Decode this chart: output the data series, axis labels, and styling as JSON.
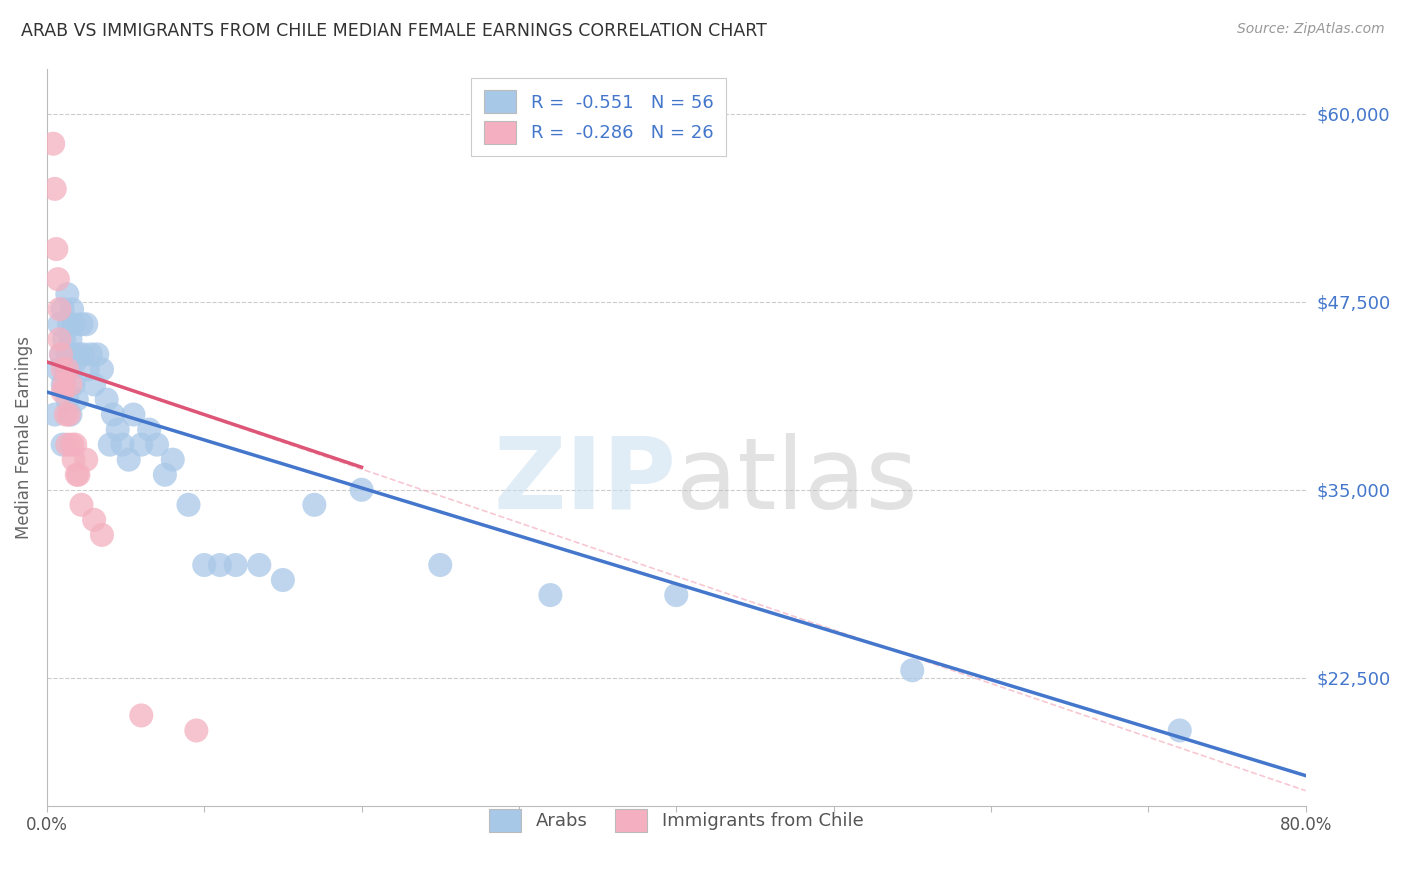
{
  "title": "ARAB VS IMMIGRANTS FROM CHILE MEDIAN FEMALE EARNINGS CORRELATION CHART",
  "source": "Source: ZipAtlas.com",
  "ylabel": "Median Female Earnings",
  "yticks": [
    22500,
    35000,
    47500,
    60000
  ],
  "ytick_labels": [
    "$22,500",
    "$35,000",
    "$47,500",
    "$60,000"
  ],
  "xmin": 0.0,
  "xmax": 0.8,
  "ymin": 14000,
  "ymax": 63000,
  "blue_R": -0.551,
  "blue_N": 56,
  "pink_R": -0.286,
  "pink_N": 26,
  "blue_color": "#a8c8e8",
  "pink_color": "#f4b0c0",
  "blue_line_color": "#4477cc",
  "pink_line_color": "#dd5577",
  "dashed_line_color": "#f4b0c0",
  "legend_label_blue": "Arabs",
  "legend_label_pink": "Immigrants from Chile",
  "watermark_zip": "ZIP",
  "watermark_atlas": "atlas",
  "blue_line_x0": 0.0,
  "blue_line_y0": 41500,
  "blue_line_x1": 0.8,
  "blue_line_y1": 16000,
  "pink_line_x0": 0.0,
  "pink_line_y0": 43500,
  "pink_line_x1": 0.2,
  "pink_line_y1": 36500,
  "dash_line_x0": 0.0,
  "dash_line_y0": 43500,
  "dash_line_x1": 0.8,
  "dash_line_y1": 15000,
  "blue_scatter_x": [
    0.005,
    0.007,
    0.008,
    0.009,
    0.01,
    0.01,
    0.01,
    0.011,
    0.012,
    0.013,
    0.013,
    0.013,
    0.014,
    0.014,
    0.015,
    0.015,
    0.016,
    0.016,
    0.017,
    0.017,
    0.018,
    0.019,
    0.02,
    0.022,
    0.023,
    0.025,
    0.026,
    0.028,
    0.03,
    0.032,
    0.035,
    0.038,
    0.04,
    0.042,
    0.045,
    0.048,
    0.052,
    0.055,
    0.06,
    0.065,
    0.07,
    0.075,
    0.08,
    0.09,
    0.1,
    0.11,
    0.12,
    0.135,
    0.15,
    0.17,
    0.2,
    0.25,
    0.32,
    0.4,
    0.55,
    0.72
  ],
  "blue_scatter_y": [
    40000,
    43000,
    46000,
    44000,
    42000,
    38000,
    47000,
    45000,
    43000,
    41000,
    48000,
    44000,
    46000,
    43000,
    45000,
    40000,
    47000,
    44000,
    42000,
    46000,
    43500,
    41000,
    44000,
    46000,
    44000,
    46000,
    43000,
    44000,
    42000,
    44000,
    43000,
    41000,
    38000,
    40000,
    39000,
    38000,
    37000,
    40000,
    38000,
    39000,
    38000,
    36000,
    37000,
    34000,
    30000,
    30000,
    30000,
    30000,
    29000,
    34000,
    35000,
    30000,
    28000,
    28000,
    23000,
    19000
  ],
  "pink_scatter_x": [
    0.004,
    0.005,
    0.006,
    0.007,
    0.008,
    0.008,
    0.009,
    0.01,
    0.01,
    0.011,
    0.012,
    0.013,
    0.013,
    0.014,
    0.015,
    0.016,
    0.017,
    0.018,
    0.019,
    0.02,
    0.022,
    0.025,
    0.03,
    0.035,
    0.06,
    0.095
  ],
  "pink_scatter_y": [
    58000,
    55000,
    51000,
    49000,
    47000,
    45000,
    44000,
    43000,
    41500,
    42000,
    40000,
    43000,
    38000,
    40000,
    42000,
    38000,
    37000,
    38000,
    36000,
    36000,
    34000,
    37000,
    33000,
    32000,
    20000,
    19000
  ]
}
